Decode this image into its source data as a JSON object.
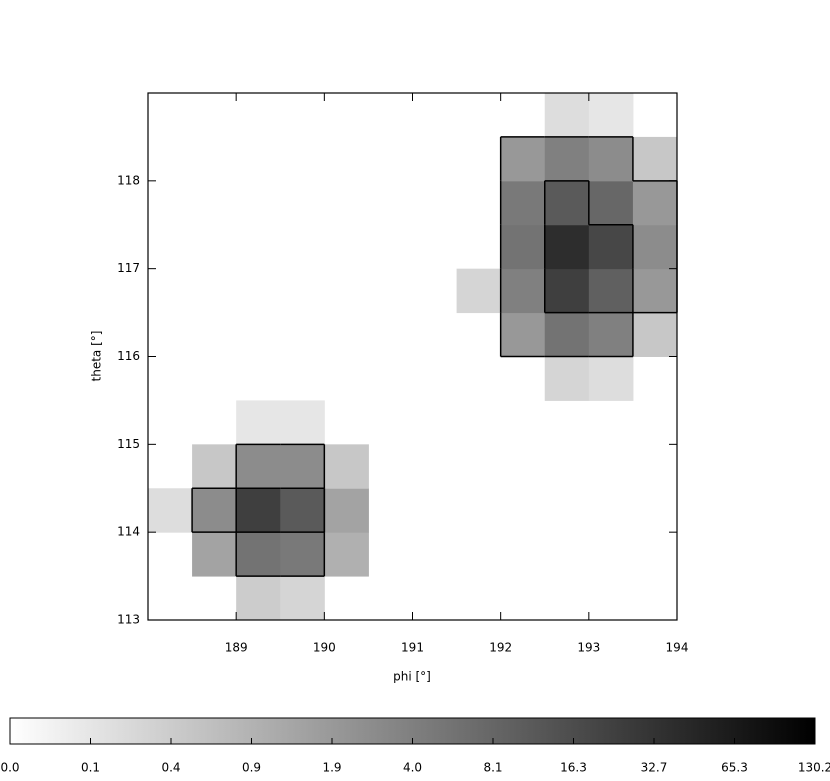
{
  "chart_data": {
    "type": "heatmap",
    "x_label": "phi [°]",
    "y_label": "theta [°]",
    "x": [
      188.25,
      188.75,
      189.25,
      189.75,
      190.25,
      190.75,
      191.25,
      191.75,
      192.25,
      192.75,
      193.25,
      193.75
    ],
    "y": [
      113.25,
      113.75,
      114.25,
      114.75,
      115.25,
      115.75,
      116.25,
      116.75,
      117.25,
      117.75,
      118.25,
      118.75
    ],
    "z": [
      [
        0,
        0,
        0.4,
        0.3,
        0,
        0,
        0,
        0,
        0,
        0,
        0,
        0
      ],
      [
        0,
        1.5,
        6,
        5,
        1,
        0,
        0,
        0,
        0,
        0,
        0,
        0
      ],
      [
        0.2,
        3,
        25,
        12,
        1.5,
        0,
        0,
        0,
        0,
        0,
        0,
        0
      ],
      [
        0,
        0.5,
        3,
        3,
        0.5,
        0,
        0,
        0,
        0,
        0,
        0,
        0
      ],
      [
        0,
        0,
        0.1,
        0.1,
        0,
        0,
        0,
        0,
        0,
        0,
        0,
        0
      ],
      [
        0,
        0,
        0,
        0,
        0,
        0,
        0,
        0,
        0,
        0.3,
        0.2,
        0
      ],
      [
        0,
        0,
        0,
        0,
        0,
        0,
        0,
        0,
        2,
        6,
        4,
        0.5
      ],
      [
        0,
        0,
        0,
        0,
        0,
        0,
        0,
        0.3,
        4,
        25,
        10,
        2
      ],
      [
        0,
        0,
        0,
        0,
        0,
        0,
        0,
        0,
        6,
        40,
        20,
        3
      ],
      [
        0,
        0,
        0,
        0,
        0,
        0,
        0,
        0,
        5,
        12,
        8,
        2
      ],
      [
        0,
        0,
        0,
        0,
        0,
        0,
        0,
        0,
        2,
        4,
        3,
        0.5
      ],
      [
        0,
        0,
        0,
        0,
        0,
        0,
        0,
        0,
        0,
        0.2,
        0.1,
        0
      ]
    ],
    "cell_size": 0.5,
    "xlim": [
      188,
      194
    ],
    "ylim": [
      113,
      119
    ],
    "xticks": [
      189,
      190,
      191,
      192,
      193,
      194
    ],
    "yticks": [
      113,
      114,
      115,
      116,
      117,
      118
    ],
    "contour_levels": [
      1.9,
      8.1
    ],
    "colorbar_ticks": [
      {
        "value": 0,
        "label": "0.0"
      },
      0.1,
      0.4,
      0.9,
      1.9,
      {
        "value": 4,
        "label": "4.0"
      },
      8.1,
      16.3,
      32.7,
      65.3,
      130.2
    ]
  }
}
